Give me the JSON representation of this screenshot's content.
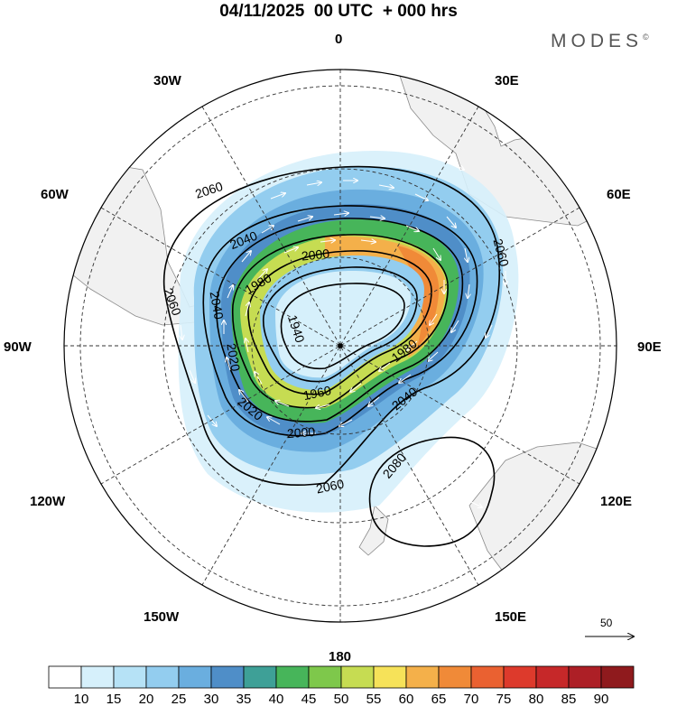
{
  "title": "04/11/2025  00 UTC  + 000 hrs",
  "brand": {
    "name": "MODES",
    "mark": "©"
  },
  "map": {
    "projection": "polar-stereographic-south",
    "longitude_labels": [
      "0",
      "30E",
      "60E",
      "90E",
      "120E",
      "150E",
      "180",
      "150W",
      "120W",
      "90W",
      "60W",
      "30W"
    ],
    "contour_labels": [
      "2060",
      "2040",
      "2000",
      "1980",
      "2040",
      "2060",
      "2060",
      "1940",
      "1980",
      "2020",
      "1960",
      "2040",
      "2020",
      "2000",
      "2080",
      "2060"
    ]
  },
  "reference_vector": {
    "label": "50"
  },
  "colorbar": {
    "ticks": [
      "10",
      "15",
      "20",
      "25",
      "30",
      "35",
      "40",
      "45",
      "50",
      "55",
      "60",
      "65",
      "70",
      "75",
      "80",
      "85",
      "90"
    ],
    "colors": [
      "#ffffff",
      "#d6f0fb",
      "#b6e2f6",
      "#93cdef",
      "#6aaedf",
      "#4f8ec8",
      "#3ea097",
      "#47b55a",
      "#7ec84b",
      "#c6dc52",
      "#f6e259",
      "#f4b04a",
      "#f08a38",
      "#ea6131",
      "#dd3a2c",
      "#c62829",
      "#ad1f26",
      "#8f1a1d"
    ]
  },
  "palette": {
    "land": "#f1f1f1",
    "coast": "#8a8a8a",
    "grid": "#333333"
  }
}
